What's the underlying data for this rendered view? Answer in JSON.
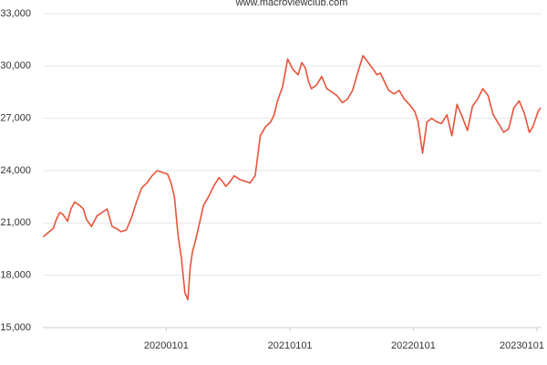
{
  "chart_data": {
    "type": "line",
    "title": "www.macroviewclub.com",
    "xlabel": "",
    "ylabel": "",
    "ylim": [
      15000,
      33000
    ],
    "y_ticks": [
      "15,000",
      "18,000",
      "21,000",
      "24,000",
      "27,000",
      "30,000",
      "33,000"
    ],
    "y_tick_values": [
      15000,
      18000,
      21000,
      24000,
      27000,
      30000,
      33000
    ],
    "x_ticks": [
      "20200101",
      "20210101",
      "20220101",
      "20230101"
    ],
    "x_tick_values": [
      "2020-01-01",
      "2021-01-01",
      "2022-01-01",
      "2023-01-01"
    ],
    "xlim": [
      "2019-01-01",
      "2023-01-15"
    ],
    "grid": "horizontal",
    "legend": "none",
    "series": [
      {
        "color": "#e8533a",
        "x": [
          "2019-01-02",
          "2019-01-20",
          "2019-02-01",
          "2019-02-10",
          "2019-02-20",
          "2019-03-01",
          "2019-03-15",
          "2019-03-25",
          "2019-04-05",
          "2019-04-20",
          "2019-05-01",
          "2019-05-10",
          "2019-05-25",
          "2019-06-10",
          "2019-06-25",
          "2019-07-10",
          "2019-07-25",
          "2019-08-05",
          "2019-08-20",
          "2019-09-05",
          "2019-09-20",
          "2019-10-05",
          "2019-10-20",
          "2019-11-05",
          "2019-11-20",
          "2019-12-05",
          "2019-12-20",
          "2020-01-05",
          "2020-01-15",
          "2020-01-25",
          "2020-02-05",
          "2020-02-15",
          "2020-02-25",
          "2020-03-05",
          "2020-03-12",
          "2020-03-19",
          "2020-03-25",
          "2020-04-05",
          "2020-04-20",
          "2020-05-05",
          "2020-05-20",
          "2020-06-05",
          "2020-06-15",
          "2020-06-25",
          "2020-07-05",
          "2020-07-20",
          "2020-08-05",
          "2020-08-20",
          "2020-09-05",
          "2020-09-20",
          "2020-10-05",
          "2020-10-20",
          "2020-11-05",
          "2020-11-15",
          "2020-11-25",
          "2020-12-10",
          "2020-12-25",
          "2021-01-10",
          "2021-01-25",
          "2021-02-05",
          "2021-02-15",
          "2021-02-25",
          "2021-03-05",
          "2021-03-20",
          "2021-04-05",
          "2021-04-20",
          "2021-05-05",
          "2021-05-20",
          "2021-06-05",
          "2021-06-20",
          "2021-07-05",
          "2021-07-20",
          "2021-08-05",
          "2021-08-20",
          "2021-09-05",
          "2021-09-15",
          "2021-09-25",
          "2021-10-05",
          "2021-10-20",
          "2021-11-05",
          "2021-11-20",
          "2021-12-05",
          "2021-12-20",
          "2022-01-05",
          "2022-01-15",
          "2022-01-28",
          "2022-02-10",
          "2022-02-25",
          "2022-03-10",
          "2022-03-25",
          "2022-04-10",
          "2022-04-25",
          "2022-05-10",
          "2022-05-25",
          "2022-06-10",
          "2022-06-25",
          "2022-07-10",
          "2022-07-25",
          "2022-08-10",
          "2022-08-25",
          "2022-09-10",
          "2022-09-25",
          "2022-10-10",
          "2022-10-25",
          "2022-11-10",
          "2022-11-25",
          "2022-12-10",
          "2022-12-20",
          "2023-01-05",
          "2023-01-12"
        ],
        "values": [
          20200,
          20500,
          20700,
          21200,
          21600,
          21500,
          21100,
          21800,
          22200,
          22000,
          21800,
          21200,
          20800,
          21400,
          21600,
          21800,
          20800,
          20700,
          20500,
          20600,
          21300,
          22200,
          23000,
          23300,
          23700,
          24000,
          23900,
          23800,
          23300,
          22500,
          20300,
          19000,
          17000,
          16600,
          18500,
          19400,
          19800,
          20700,
          22000,
          22500,
          23100,
          23600,
          23400,
          23100,
          23300,
          23700,
          23500,
          23400,
          23300,
          23700,
          26000,
          26500,
          26800,
          27200,
          28000,
          28800,
          30400,
          29800,
          29500,
          30200,
          29900,
          29100,
          28700,
          28900,
          29400,
          28700,
          28500,
          28300,
          27900,
          28100,
          28600,
          29600,
          30600,
          30200,
          29800,
          29500,
          29600,
          29200,
          28600,
          28400,
          28600,
          28100,
          27800,
          27400,
          26800,
          25000,
          26800,
          27000,
          26800,
          26700,
          27200,
          26000,
          27800,
          27100,
          26300,
          27700,
          28100,
          28700,
          28300,
          27200,
          26700,
          26200,
          26400,
          27600,
          28000,
          27300,
          26200,
          26500,
          27400,
          27600
        ]
      }
    ]
  }
}
